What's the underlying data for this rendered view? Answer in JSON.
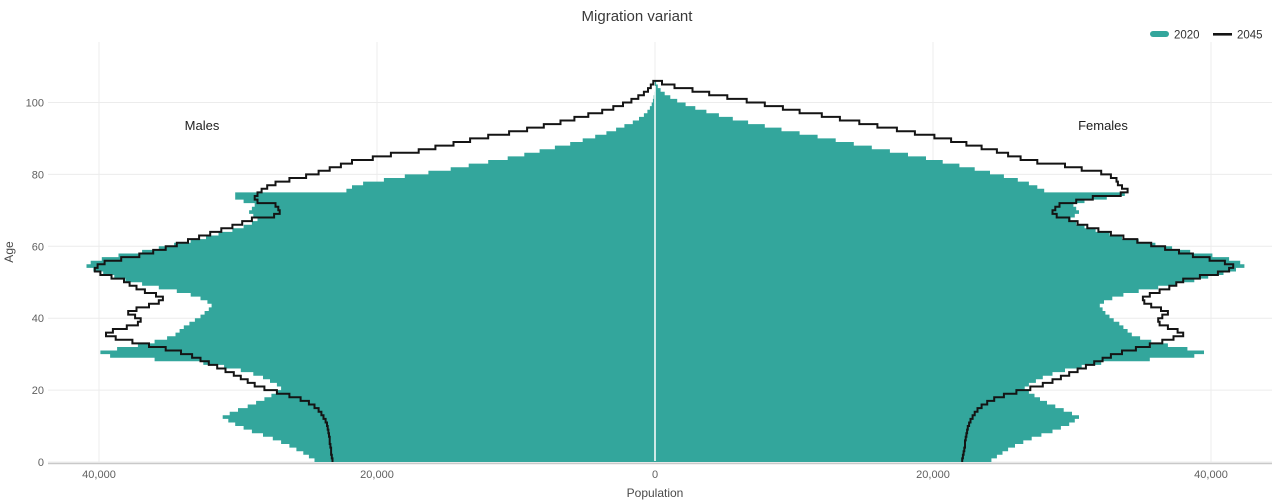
{
  "title": "Migration variant",
  "legend": [
    {
      "label": "2020",
      "swatch": "teal-area-swatch"
    },
    {
      "label": "2045",
      "swatch": "black-line-swatch"
    }
  ],
  "annotations": {
    "males": "Males",
    "females": "Females"
  },
  "colors": {
    "area_2020": "#33a69c",
    "line_2045": "#141414",
    "grid": "#ececec",
    "axis_line": "#c9c9c9",
    "center_line": "#ffffff"
  },
  "chart_data": {
    "type": "area",
    "subtype": "population-pyramid",
    "title": "Migration variant",
    "age_min": 0,
    "age_max": 105,
    "x_axis": {
      "label": "Population",
      "tick_values": [
        -40000,
        -20000,
        0,
        20000,
        40000
      ],
      "tick_labels": [
        "40,000",
        "20,000",
        "0",
        "20,000",
        "40,000"
      ]
    },
    "y_axis": {
      "label": "Age",
      "tick_values": [
        0,
        20,
        40,
        60,
        80,
        100
      ]
    },
    "series": [
      {
        "name": "2020",
        "style": "area",
        "color": "#33a69c",
        "males": [
          24500,
          24900,
          25300,
          25800,
          26300,
          26900,
          27500,
          28200,
          29000,
          29600,
          30200,
          30700,
          31100,
          30600,
          30000,
          29300,
          28700,
          28100,
          27600,
          27200,
          26900,
          27200,
          27700,
          28200,
          28900,
          29800,
          31000,
          32500,
          36000,
          39200,
          39900,
          38700,
          37200,
          36000,
          35100,
          34500,
          34200,
          33900,
          33500,
          33100,
          32700,
          32400,
          32100,
          31900,
          32200,
          32700,
          33400,
          34400,
          35700,
          36900,
          38100,
          38900,
          39700,
          40400,
          40900,
          40600,
          39800,
          38600,
          36900,
          35700,
          34600,
          33400,
          32300,
          31400,
          30400,
          29600,
          29000,
          28600,
          28900,
          29200,
          29000,
          28800,
          29600,
          30200,
          30200,
          22200,
          21800,
          21000,
          19500,
          18000,
          16300,
          14700,
          13400,
          12000,
          10600,
          9400,
          8300,
          7200,
          6100,
          5200,
          4300,
          3500,
          2800,
          2200,
          1600,
          1150,
          800,
          550,
          370,
          240,
          150,
          90,
          50,
          25,
          10,
          5
        ],
        "females": [
          24200,
          24600,
          25000,
          25400,
          25900,
          26500,
          27100,
          27800,
          28600,
          29200,
          29800,
          30200,
          30500,
          30000,
          29400,
          28800,
          28200,
          27700,
          27300,
          26900,
          26600,
          26900,
          27400,
          27900,
          28600,
          29500,
          30700,
          32100,
          35600,
          38800,
          39500,
          38300,
          36900,
          35700,
          34900,
          34300,
          34000,
          33700,
          33400,
          33000,
          32700,
          32400,
          32200,
          32000,
          32300,
          32900,
          33700,
          34800,
          36200,
          37500,
          38800,
          39800,
          40900,
          41800,
          42400,
          42100,
          41300,
          40100,
          38500,
          37200,
          36000,
          34800,
          33600,
          32700,
          31700,
          30900,
          30300,
          29900,
          30200,
          30500,
          30300,
          30100,
          30900,
          32500,
          33800,
          28000,
          27500,
          26900,
          26100,
          25100,
          24100,
          23000,
          21900,
          20700,
          19500,
          18200,
          16900,
          15600,
          14300,
          13000,
          11700,
          10400,
          9100,
          7900,
          6700,
          5600,
          4600,
          3700,
          2900,
          2200,
          1600,
          1100,
          700,
          400,
          200,
          80
        ]
      },
      {
        "name": "2045",
        "style": "line",
        "color": "#141414",
        "males": [
          23200,
          23250,
          23300,
          23300,
          23350,
          23400,
          23400,
          23450,
          23500,
          23550,
          23600,
          23700,
          23850,
          24000,
          24200,
          24500,
          24900,
          25500,
          26300,
          27200,
          28100,
          28800,
          29300,
          29800,
          30300,
          30900,
          31500,
          32100,
          32700,
          33300,
          34100,
          35200,
          36400,
          37600,
          38800,
          39500,
          39000,
          38000,
          37200,
          37000,
          37400,
          37900,
          37300,
          36400,
          35700,
          35400,
          35900,
          36700,
          37300,
          37800,
          38200,
          39100,
          39900,
          40300,
          40100,
          39600,
          38400,
          37100,
          36100,
          35200,
          34400,
          33600,
          32800,
          32000,
          31200,
          30400,
          29700,
          29000,
          27400,
          27000,
          27100,
          27300,
          28600,
          28800,
          28600,
          28300,
          27900,
          27300,
          26300,
          25100,
          24200,
          23400,
          22600,
          21800,
          20300,
          19000,
          17000,
          15800,
          14500,
          13300,
          12000,
          10500,
          9200,
          8000,
          6800,
          5800,
          4800,
          3800,
          3000,
          2300,
          1700,
          1200,
          800,
          500,
          300,
          120
        ],
        "females": [
          22100,
          22150,
          22200,
          22250,
          22300,
          22300,
          22350,
          22400,
          22450,
          22500,
          22600,
          22700,
          22850,
          23000,
          23200,
          23500,
          23900,
          24400,
          25100,
          26000,
          27000,
          27900,
          28600,
          29200,
          29800,
          30400,
          31000,
          31600,
          32200,
          32800,
          33600,
          34600,
          35600,
          36500,
          37300,
          38000,
          37600,
          36900,
          36300,
          36200,
          36500,
          36900,
          36400,
          35700,
          35200,
          35100,
          35600,
          36300,
          37000,
          37500,
          38000,
          39200,
          40500,
          41300,
          41600,
          41000,
          39900,
          38700,
          37700,
          36700,
          35700,
          34700,
          33700,
          32800,
          31900,
          31100,
          30400,
          29800,
          28900,
          28600,
          28800,
          29100,
          30300,
          31500,
          33500,
          34000,
          33600,
          33300,
          33200,
          32800,
          32100,
          30700,
          29500,
          27500,
          26300,
          25400,
          24600,
          23500,
          22400,
          21300,
          20100,
          18700,
          17400,
          16000,
          14700,
          13300,
          12000,
          10400,
          9200,
          7900,
          6600,
          5200,
          3900,
          2700,
          1400,
          500
        ]
      }
    ]
  }
}
